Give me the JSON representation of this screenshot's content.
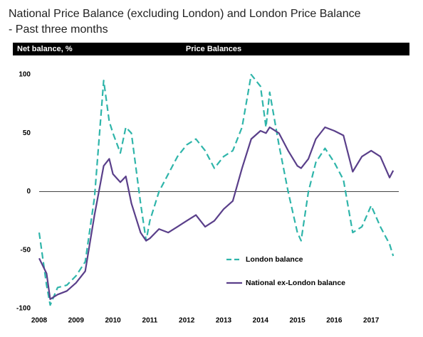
{
  "chart_data": {
    "type": "line",
    "title": "National Price Balance (excluding London) and London Price Balance",
    "subtitle": "- Past three months",
    "ylabel": "Net balance, %",
    "panel_title": "Price Balances",
    "x": [
      2008.0,
      2008.2,
      2008.3,
      2008.5,
      2008.75,
      2009.0,
      2009.25,
      2009.5,
      2009.75,
      2009.9,
      2010.0,
      2010.2,
      2010.35,
      2010.5,
      2010.75,
      2010.9,
      2011.0,
      2011.25,
      2011.5,
      2011.75,
      2012.0,
      2012.25,
      2012.5,
      2012.75,
      2013.0,
      2013.25,
      2013.5,
      2013.75,
      2014.0,
      2014.15,
      2014.25,
      2014.5,
      2014.75,
      2015.0,
      2015.1,
      2015.3,
      2015.5,
      2015.75,
      2016.0,
      2016.25,
      2016.5,
      2016.75,
      2017.0,
      2017.25,
      2017.5,
      2017.6
    ],
    "series": [
      {
        "name": "London balance",
        "color": "#2fb5aa",
        "dashed": true,
        "values": [
          -35,
          -80,
          -97,
          -82,
          -80,
          -72,
          -60,
          -5,
          95,
          60,
          50,
          33,
          55,
          50,
          -10,
          -42,
          -25,
          0,
          15,
          30,
          40,
          45,
          35,
          20,
          30,
          35,
          55,
          100,
          90,
          55,
          85,
          40,
          0,
          -35,
          -42,
          0,
          25,
          37,
          25,
          10,
          -35,
          -30,
          -12,
          -30,
          -45,
          -55
        ]
      },
      {
        "name": "National ex-London balance",
        "color": "#5a3f8a",
        "dashed": false,
        "values": [
          -57,
          -70,
          -92,
          -88,
          -85,
          -78,
          -68,
          -20,
          22,
          28,
          15,
          8,
          13,
          -10,
          -35,
          -42,
          -40,
          -32,
          -35,
          -30,
          -25,
          -20,
          -30,
          -25,
          -15,
          -8,
          20,
          45,
          52,
          50,
          55,
          50,
          35,
          22,
          20,
          28,
          45,
          55,
          52,
          48,
          17,
          30,
          35,
          30,
          12,
          18
        ]
      }
    ],
    "xlim": [
      2008,
      2017.8
    ],
    "xticks": [
      2008,
      2009,
      2010,
      2011,
      2012,
      2013,
      2014,
      2015,
      2016,
      2017
    ],
    "ylim": [
      -100,
      100
    ],
    "yticks": [
      -100,
      -50,
      0,
      50,
      100
    ],
    "zero_line": true
  }
}
